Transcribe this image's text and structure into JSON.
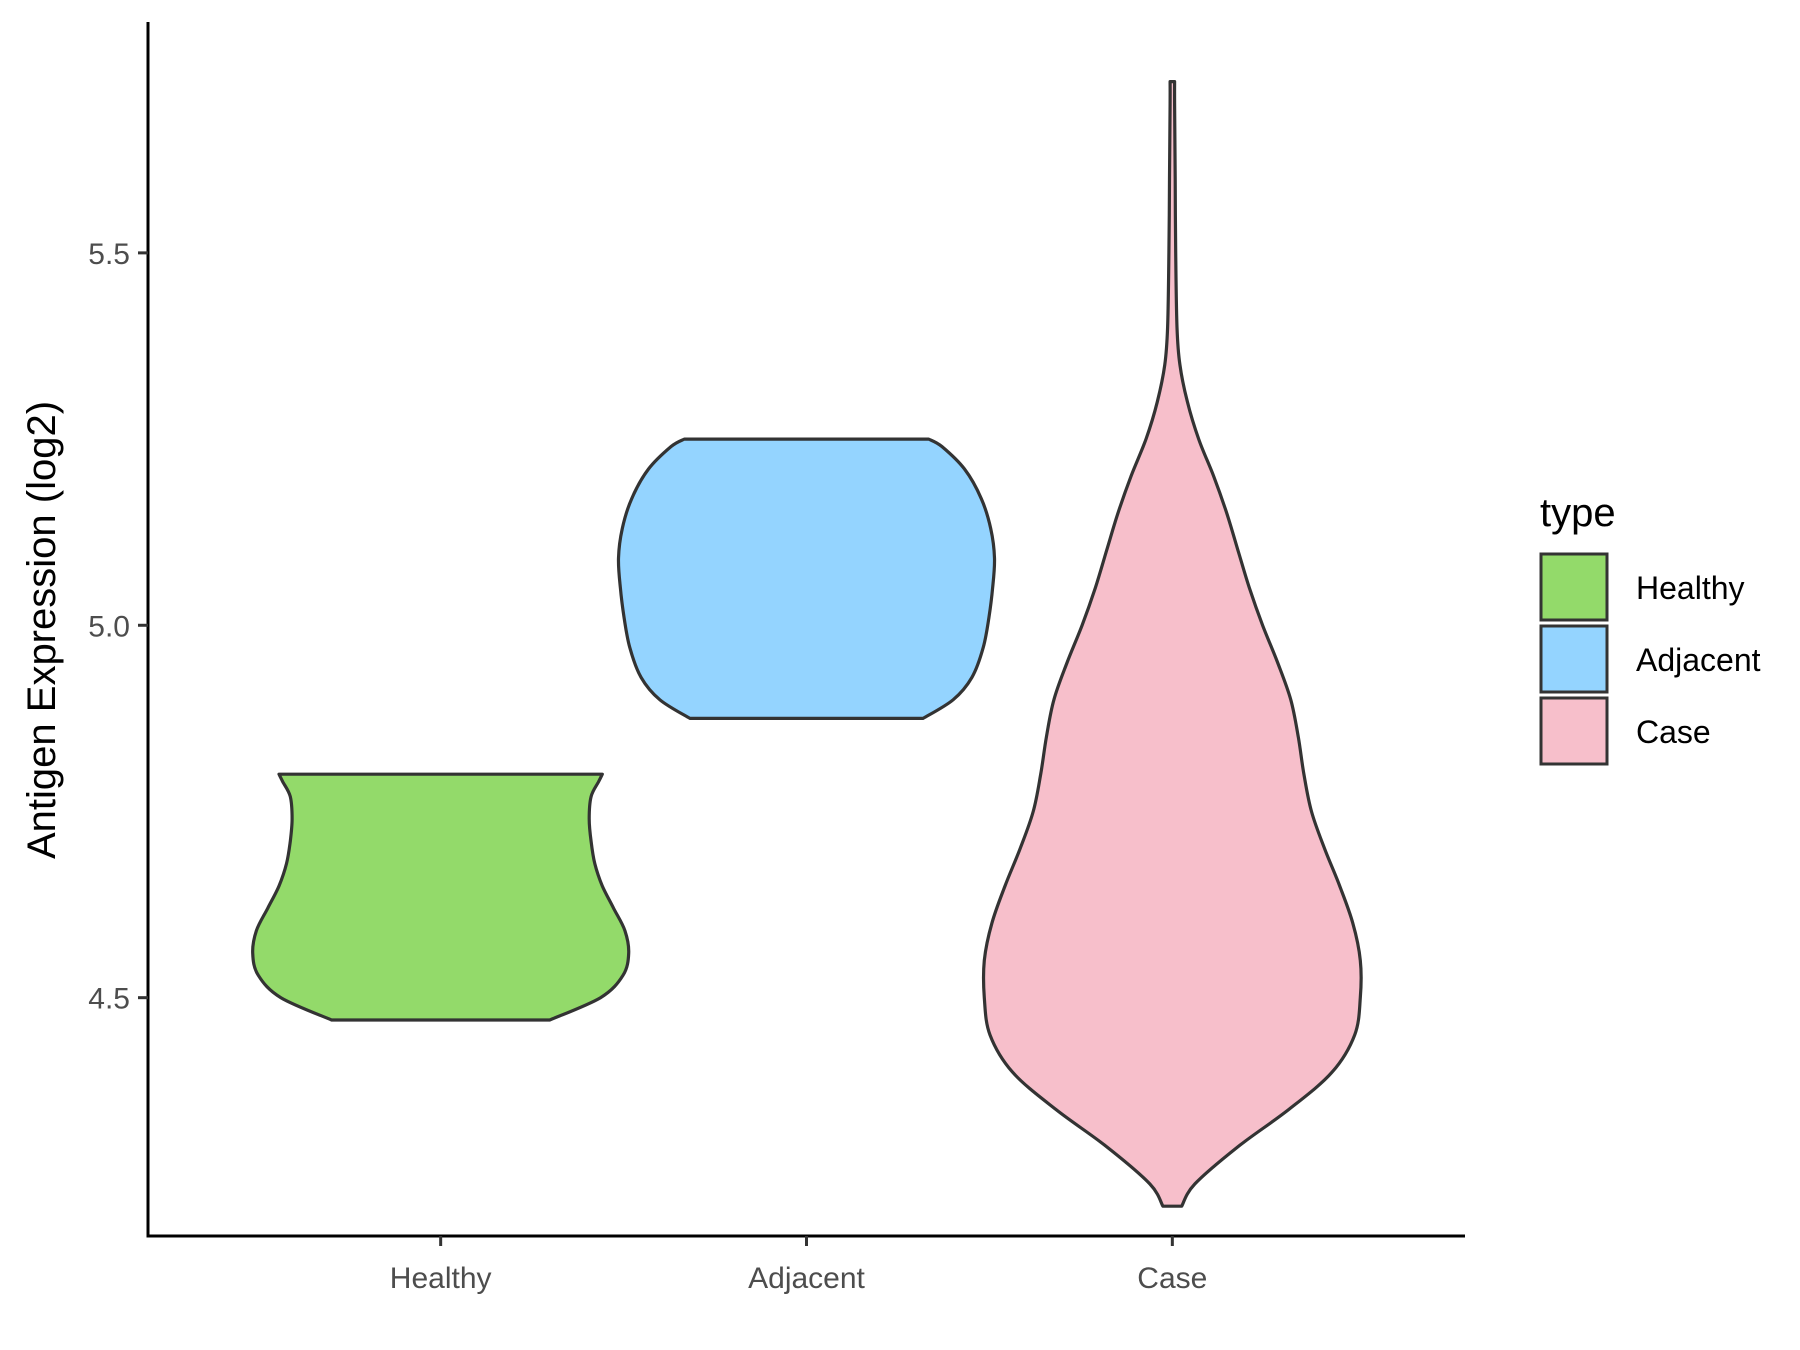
{
  "chart_data": {
    "type": "violin",
    "xlabel": "",
    "ylabel": "Antigen Expression (log2)",
    "ylim": [
      4.18,
      5.81
    ],
    "yticks": [
      "4.5",
      "5.0",
      "5.5"
    ],
    "grid": false,
    "legend": {
      "title": "type",
      "position": "right",
      "entries": [
        "Healthy",
        "Adjacent",
        "Case"
      ]
    },
    "categories": [
      "Healthy",
      "Adjacent",
      "Case"
    ],
    "series": [
      {
        "name": "Healthy",
        "color": "#93DA6A",
        "min": 4.47,
        "max": 4.8,
        "profile": [
          [
            4.47,
            0.58
          ],
          [
            4.5,
            0.85
          ],
          [
            4.53,
            0.97
          ],
          [
            4.56,
            1.0
          ],
          [
            4.59,
            0.98
          ],
          [
            4.62,
            0.92
          ],
          [
            4.65,
            0.86
          ],
          [
            4.68,
            0.82
          ],
          [
            4.71,
            0.8
          ],
          [
            4.74,
            0.79
          ],
          [
            4.77,
            0.8
          ],
          [
            4.79,
            0.84
          ],
          [
            4.8,
            0.86
          ]
        ]
      },
      {
        "name": "Adjacent",
        "color": "#94D4FF",
        "min": 4.875,
        "max": 5.25,
        "profile": [
          [
            4.875,
            0.62
          ],
          [
            4.9,
            0.78
          ],
          [
            4.93,
            0.88
          ],
          [
            4.97,
            0.94
          ],
          [
            5.01,
            0.97
          ],
          [
            5.05,
            0.99
          ],
          [
            5.09,
            1.0
          ],
          [
            5.13,
            0.98
          ],
          [
            5.17,
            0.93
          ],
          [
            5.21,
            0.84
          ],
          [
            5.24,
            0.72
          ],
          [
            5.25,
            0.65
          ]
        ]
      },
      {
        "name": "Case",
        "color": "#F7BFCB",
        "min": 4.22,
        "max": 5.73,
        "profile": [
          [
            4.22,
            0.05
          ],
          [
            4.25,
            0.12
          ],
          [
            4.3,
            0.35
          ],
          [
            4.35,
            0.62
          ],
          [
            4.4,
            0.85
          ],
          [
            4.45,
            0.97
          ],
          [
            4.5,
            1.0
          ],
          [
            4.55,
            1.0
          ],
          [
            4.6,
            0.96
          ],
          [
            4.65,
            0.89
          ],
          [
            4.7,
            0.81
          ],
          [
            4.75,
            0.74
          ],
          [
            4.8,
            0.7
          ],
          [
            4.85,
            0.67
          ],
          [
            4.9,
            0.63
          ],
          [
            4.95,
            0.56
          ],
          [
            5.0,
            0.48
          ],
          [
            5.05,
            0.41
          ],
          [
            5.1,
            0.35
          ],
          [
            5.15,
            0.29
          ],
          [
            5.2,
            0.22
          ],
          [
            5.25,
            0.14
          ],
          [
            5.3,
            0.08
          ],
          [
            5.35,
            0.04
          ],
          [
            5.4,
            0.025
          ],
          [
            5.5,
            0.018
          ],
          [
            5.6,
            0.015
          ],
          [
            5.7,
            0.012
          ],
          [
            5.73,
            0.012
          ]
        ]
      }
    ]
  }
}
